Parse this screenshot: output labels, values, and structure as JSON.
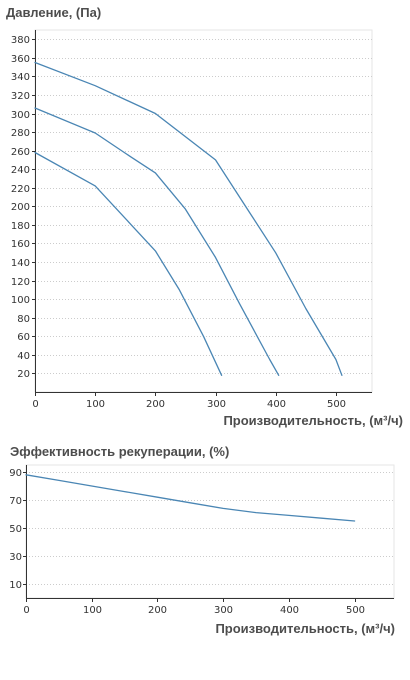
{
  "chart_data": [
    {
      "type": "line",
      "title": "Давление, (Па)",
      "xlabel": "Производительность, (м³/ч)",
      "ylabel": "",
      "xlim": [
        0,
        560
      ],
      "ylim": [
        0,
        390
      ],
      "xticks": [
        0,
        100,
        200,
        300,
        400,
        500
      ],
      "yticks": [
        20,
        40,
        60,
        80,
        100,
        120,
        140,
        160,
        180,
        200,
        220,
        240,
        260,
        280,
        300,
        320,
        340,
        360,
        380
      ],
      "grid": "horizontal",
      "legend": "none",
      "series": [
        {
          "x": [
            0,
            100,
            160,
            200,
            240,
            280,
            310
          ],
          "y": [
            258,
            222,
            180,
            152,
            110,
            60,
            18
          ]
        },
        {
          "x": [
            0,
            100,
            160,
            200,
            250,
            300,
            340,
            390,
            405
          ],
          "y": [
            306,
            279,
            253,
            236,
            197,
            145,
            95,
            35,
            18
          ]
        },
        {
          "x": [
            0,
            100,
            200,
            300,
            360,
            400,
            450,
            500,
            510
          ],
          "y": [
            355,
            330,
            300,
            250,
            190,
            150,
            90,
            35,
            18
          ]
        }
      ],
      "colors": {
        "line": "#4a86b4",
        "grid": "#cccccc",
        "axis": "#333333"
      }
    },
    {
      "type": "line",
      "title": "Эффективность рекуперации, (%)",
      "xlabel": "Производительность, (м³/ч)",
      "ylabel": "",
      "xlim": [
        0,
        560
      ],
      "ylim": [
        0,
        95
      ],
      "xticks": [
        0,
        100,
        200,
        300,
        400,
        500
      ],
      "yticks": [
        10,
        30,
        50,
        70,
        90
      ],
      "grid": "horizontal",
      "legend": "none",
      "series": [
        {
          "x": [
            0,
            50,
            100,
            150,
            200,
            250,
            300,
            350,
            400,
            450,
            500
          ],
          "y": [
            88,
            84,
            80,
            76,
            72,
            68,
            64,
            61,
            59,
            57,
            55
          ]
        }
      ],
      "colors": {
        "line": "#4a86b4",
        "grid": "#cccccc",
        "axis": "#333333"
      }
    }
  ]
}
